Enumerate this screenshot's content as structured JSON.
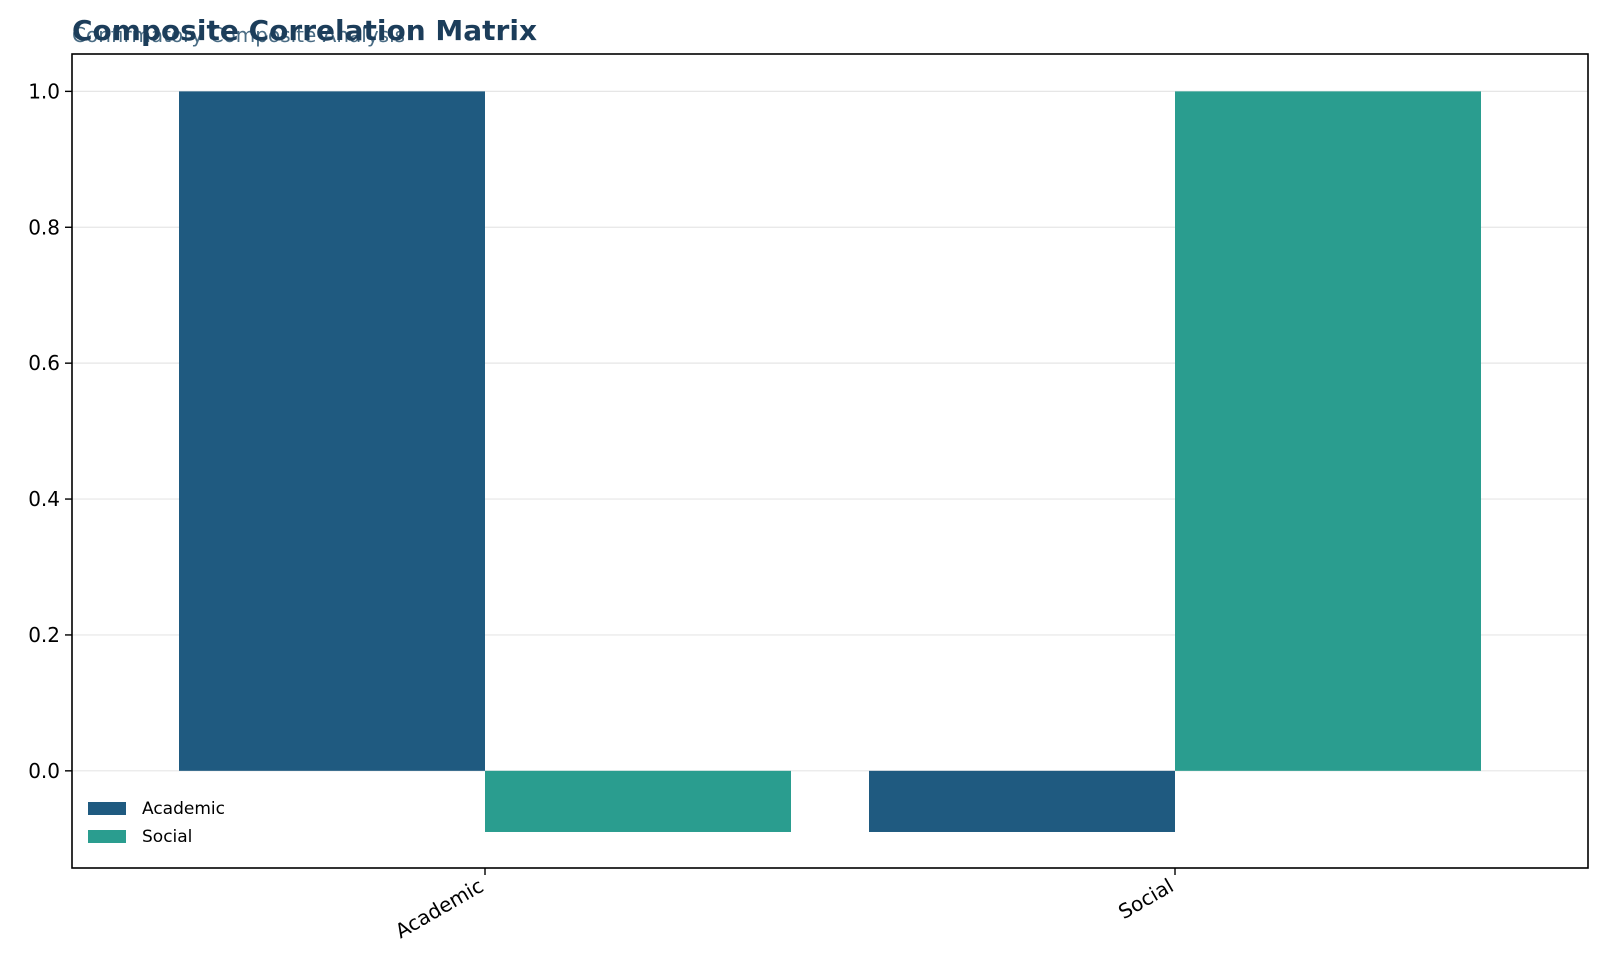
{
  "chart_data": {
    "type": "bar",
    "title": "Composite Correlation Matrix",
    "subtitle": "Confirmatory Composite Analysis",
    "categories": [
      "Academic",
      "Social"
    ],
    "series": [
      {
        "name": "Academic",
        "values": [
          1.0,
          -0.09
        ]
      },
      {
        "name": "Social",
        "values": [
          -0.09,
          1.0
        ]
      }
    ],
    "ylim": [
      -0.143,
      1.055
    ],
    "yticks": [
      "0.0",
      "0.2",
      "0.4",
      "0.6",
      "0.8",
      "1.0"
    ],
    "grid": true,
    "legend_position": "lower-left"
  },
  "colors": {
    "Academic": "#1f5a80",
    "Social": "#2a9d8f",
    "title": "#1c3d5a",
    "subtitle": "#4a6c84",
    "grid": "#e6e6e6"
  }
}
